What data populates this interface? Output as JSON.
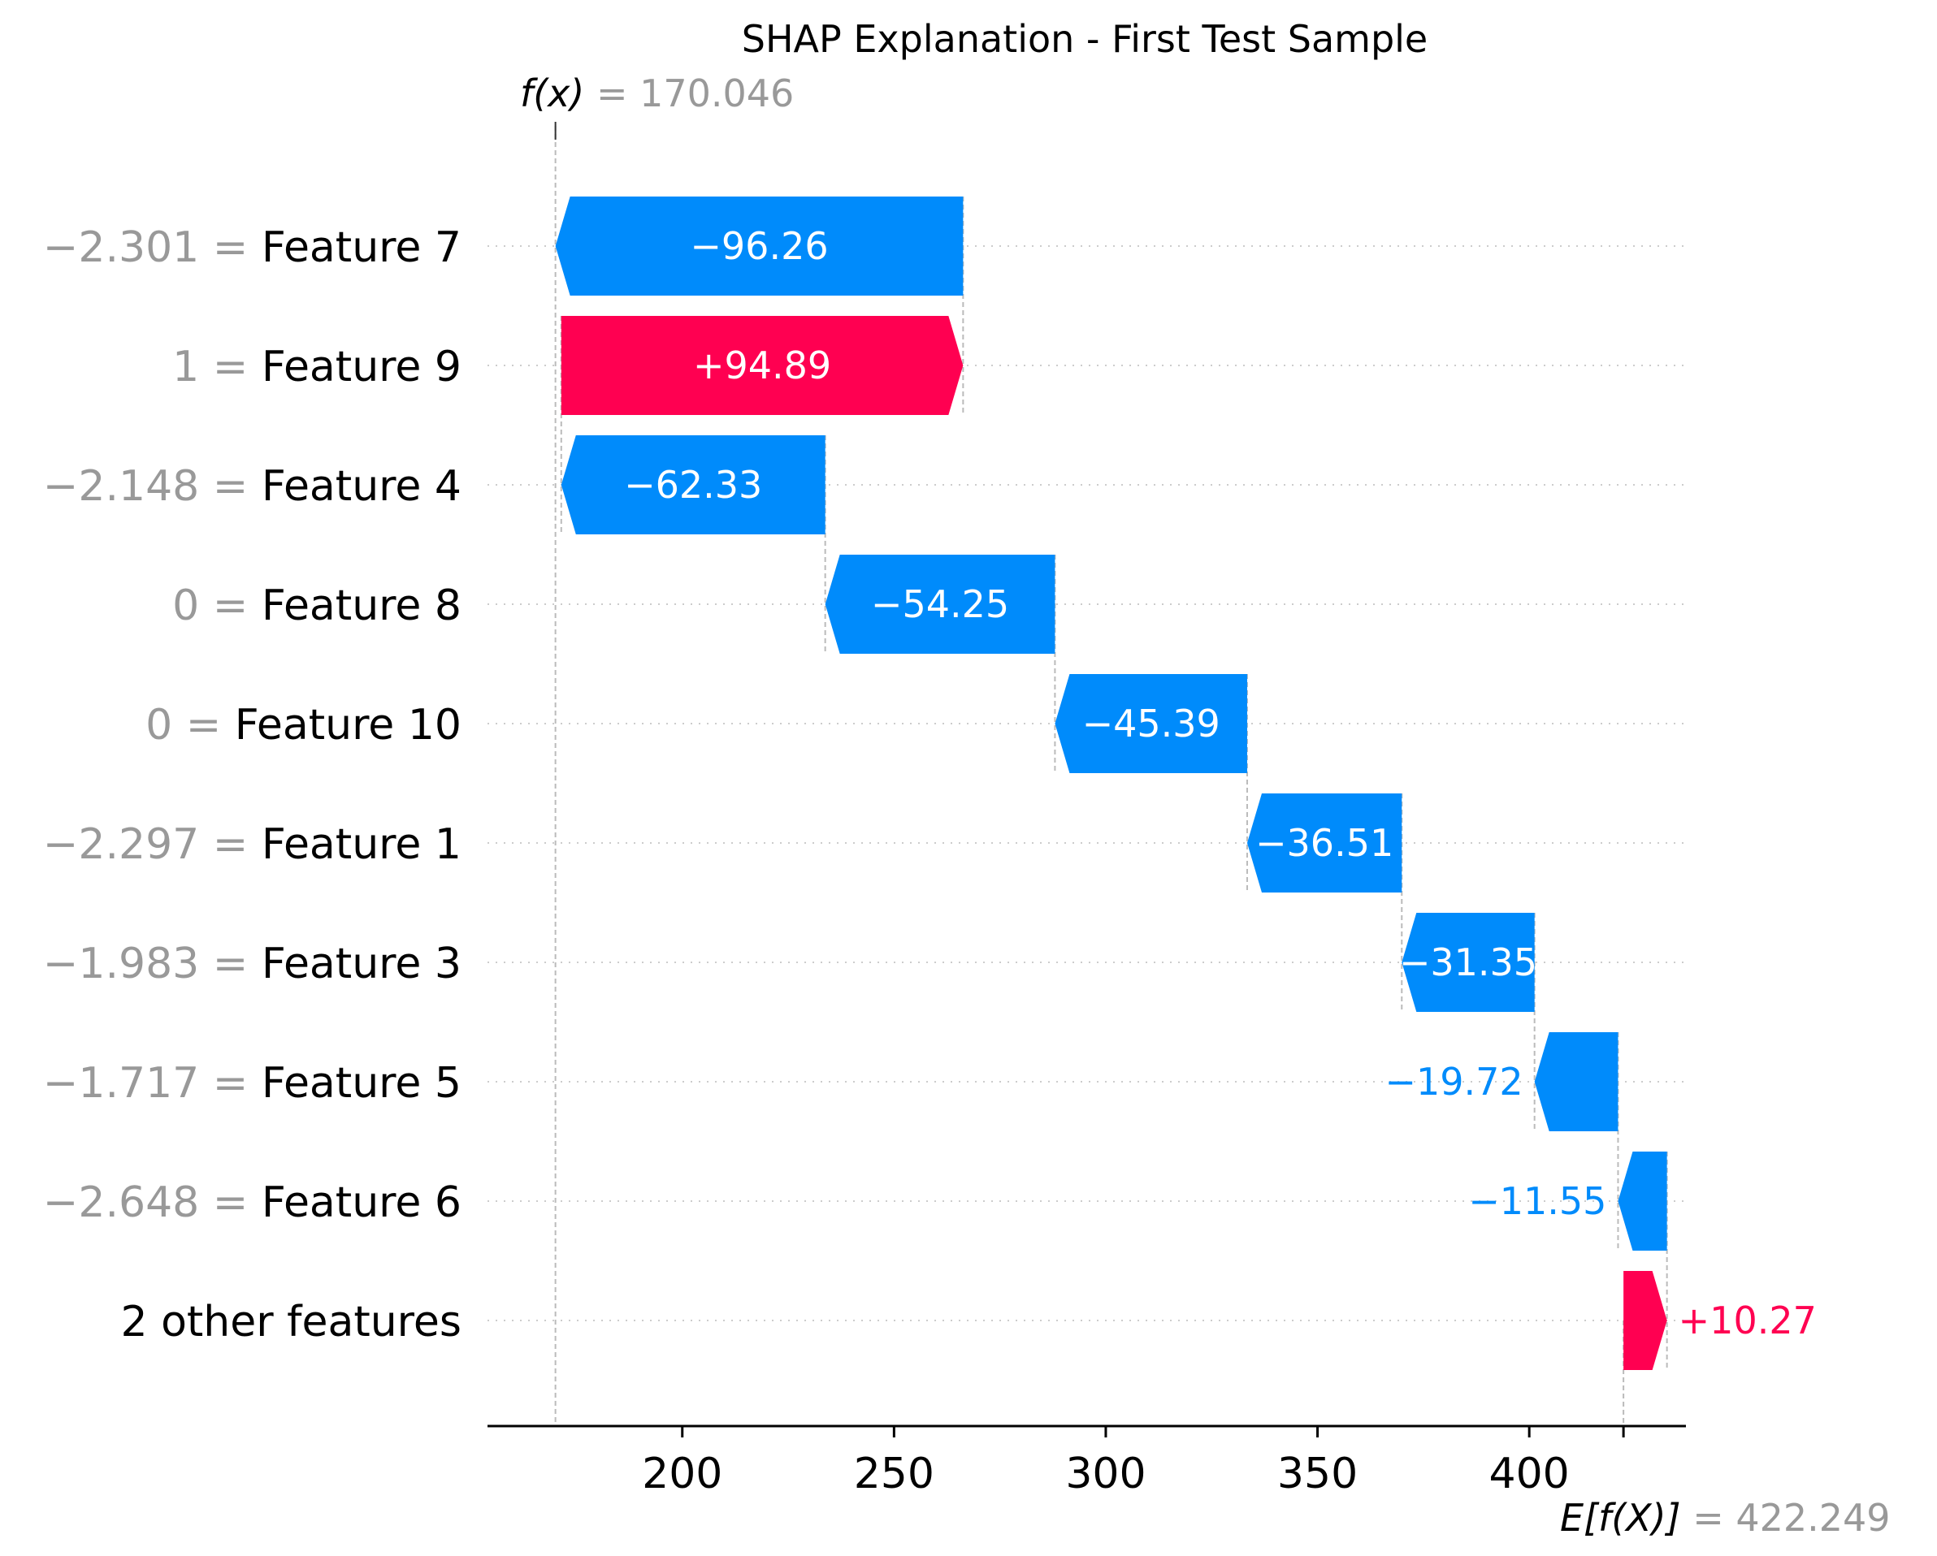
{
  "chart_data": {
    "type": "waterfall",
    "title": "SHAP Explanation - First Test Sample",
    "fx": {
      "symbol": "f(x)",
      "value": "170.046",
      "numeric": 170.046
    },
    "expected": {
      "symbol": "E[f(X)]",
      "value": "422.249",
      "numeric": 422.249
    },
    "xlim": [
      154,
      437
    ],
    "xticks": [
      200,
      250,
      300,
      350,
      400
    ],
    "rows": [
      {
        "feature_value": "−2.301",
        "feature_name": "Feature 7",
        "shap": -96.26,
        "label": "−96.26",
        "label_inside": true
      },
      {
        "feature_value": "1",
        "feature_name": "Feature 9",
        "shap": 94.89,
        "label": "+94.89",
        "label_inside": true
      },
      {
        "feature_value": "−2.148",
        "feature_name": "Feature 4",
        "shap": -62.33,
        "label": "−62.33",
        "label_inside": true
      },
      {
        "feature_value": "0",
        "feature_name": "Feature 8",
        "shap": -54.25,
        "label": "−54.25",
        "label_inside": true
      },
      {
        "feature_value": "0",
        "feature_name": "Feature 10",
        "shap": -45.39,
        "label": "−45.39",
        "label_inside": true
      },
      {
        "feature_value": "−2.297",
        "feature_name": "Feature 1",
        "shap": -36.51,
        "label": "−36.51",
        "label_inside": true
      },
      {
        "feature_value": "−1.983",
        "feature_name": "Feature 3",
        "shap": -31.35,
        "label": "−31.35",
        "label_inside": true
      },
      {
        "feature_value": "−1.717",
        "feature_name": "Feature 5",
        "shap": -19.72,
        "label": "−19.72",
        "label_inside": false
      },
      {
        "feature_value": "−2.648",
        "feature_name": "Feature 6",
        "shap": -11.55,
        "label": "−11.55",
        "label_inside": false
      },
      {
        "feature_value": "",
        "feature_name": "2 other features",
        "shap": 10.27,
        "label": "+10.27",
        "label_inside": false
      }
    ],
    "colors": {
      "positive": "#ff0051",
      "negative": "#008bfb",
      "grey_text": "#999999",
      "grid": "#cccccc"
    }
  }
}
